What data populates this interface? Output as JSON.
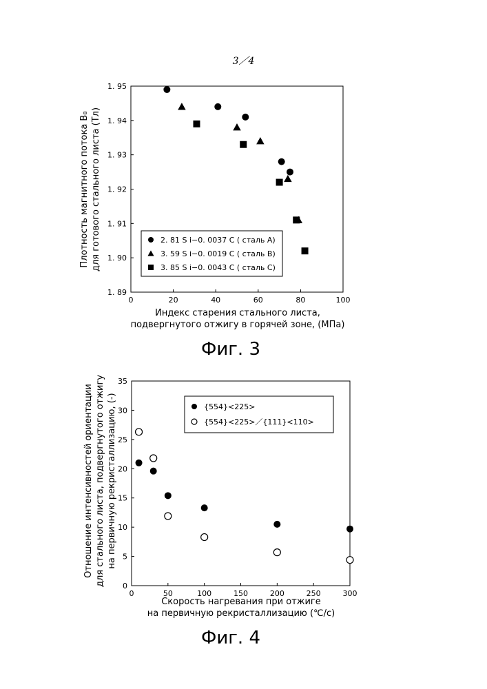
{
  "page": {
    "number": "3／4"
  },
  "figures": [
    {
      "caption": "Фиг. 3"
    },
    {
      "caption": "Фиг. 4"
    }
  ],
  "chart_data": [
    {
      "type": "scatter",
      "title": "",
      "xlabel": [
        "Индекс старения стального листа,",
        "подвергнутого отжигу в горячей зоне, (МПа)"
      ],
      "ylabel": [
        "Плотность магнитного потока B₈",
        "для готового стального листа (Тл)"
      ],
      "xlim": [
        0,
        100
      ],
      "ylim": [
        1.89,
        1.95
      ],
      "xticks": [
        0,
        20,
        40,
        60,
        80,
        100
      ],
      "yticks": [
        1.89,
        1.9,
        1.91,
        1.92,
        1.93,
        1.94,
        1.95
      ],
      "ytick_labels": [
        "1. 89",
        "1. 90",
        "1. 91",
        "1. 92",
        "1. 93",
        "1. 94",
        "1. 95"
      ],
      "legend_position": "lower-left",
      "series": [
        {
          "name": "2. 81 S i−0. 0037 C ( сталь A)",
          "marker": "filled-circle",
          "points": [
            [
              17,
              1.949
            ],
            [
              41,
              1.944
            ],
            [
              54,
              1.941
            ],
            [
              71,
              1.928
            ],
            [
              75,
              1.925
            ]
          ]
        },
        {
          "name": "3. 59 S i−0. 0019 C ( сталь B)",
          "marker": "filled-triangle",
          "points": [
            [
              24,
              1.944
            ],
            [
              50,
              1.938
            ],
            [
              61,
              1.934
            ],
            [
              74,
              1.923
            ],
            [
              79,
              1.911
            ]
          ]
        },
        {
          "name": "3. 85 S i−0. 0043 C ( сталь C)",
          "marker": "filled-square",
          "points": [
            [
              31,
              1.939
            ],
            [
              53,
              1.933
            ],
            [
              70,
              1.922
            ],
            [
              78,
              1.911
            ],
            [
              82,
              1.902
            ]
          ]
        }
      ]
    },
    {
      "type": "scatter",
      "title": "",
      "xlabel": [
        "Скорость нагревания при отжиге",
        "на первичную рекристаллизацию (℃/с)"
      ],
      "ylabel": [
        "Отношение интенсивностей ориентации",
        "для стального листа, подвергнутого отжигу",
        "на первичную рекристаллизацию, (-)"
      ],
      "xlim": [
        0,
        300
      ],
      "ylim": [
        0,
        35
      ],
      "xticks": [
        0,
        50,
        100,
        150,
        200,
        250,
        300
      ],
      "yticks": [
        0,
        5,
        10,
        15,
        20,
        25,
        30,
        35
      ],
      "legend_position": "top-right",
      "series": [
        {
          "name": "{554}<225>",
          "marker": "filled-circle",
          "points": [
            [
              10,
              21.0
            ],
            [
              30,
              19.6
            ],
            [
              50,
              15.4
            ],
            [
              100,
              13.3
            ],
            [
              200,
              10.5
            ],
            [
              300,
              9.7
            ]
          ]
        },
        {
          "name": "{554}<225>／{111}<110>",
          "marker": "open-circle",
          "points": [
            [
              10,
              26.3
            ],
            [
              30,
              21.8
            ],
            [
              50,
              11.9
            ],
            [
              100,
              8.3
            ],
            [
              200,
              5.7
            ],
            [
              300,
              4.4
            ]
          ]
        }
      ]
    }
  ]
}
